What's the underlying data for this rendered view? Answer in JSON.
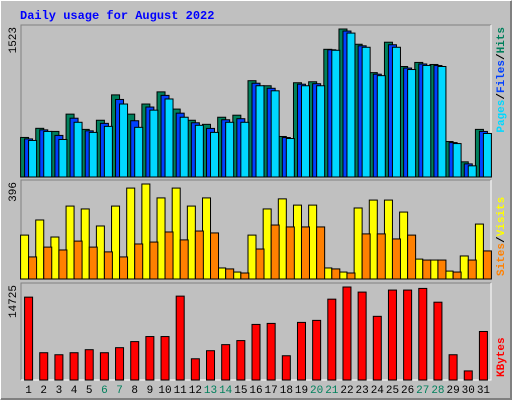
{
  "chart_data": [
    {
      "type": "bar",
      "title": "Daily usage for August 2022",
      "ylim": [
        0,
        1523
      ],
      "yticks": [
        1523
      ],
      "legend_separator": "/",
      "series": [
        {
          "name": "Hits",
          "color": "#00805C",
          "values": [
            407,
            501,
            469,
            647,
            490,
            584,
            845,
            647,
            751,
            876,
            699,
            584,
            542,
            615,
            636,
            991,
            939,
            417,
            970,
            980,
            1314,
            1523,
            1366,
            1074,
            1387,
            1137,
            1179,
            1158,
            365,
            156,
            490
          ]
        },
        {
          "name": "Files",
          "color": "#0040FF",
          "values": [
            392,
            485,
            428,
            605,
            475,
            552,
            798,
            579,
            720,
            840,
            657,
            558,
            500,
            589,
            600,
            965,
            913,
            406,
            955,
            960,
            1309,
            1502,
            1350,
            1058,
            1361,
            1121,
            1163,
            1147,
            354,
            135,
            469
          ]
        },
        {
          "name": "Pages",
          "color": "#00D8FF",
          "values": [
            376,
            469,
            386,
            563,
            459,
            521,
            751,
            511,
            688,
            803,
            615,
            532,
            459,
            563,
            563,
            939,
            887,
            396,
            939,
            939,
            1304,
            1481,
            1335,
            1043,
            1335,
            1106,
            1148,
            1137,
            344,
            115,
            448
          ]
        }
      ]
    },
    {
      "type": "bar",
      "ylim": [
        0,
        396
      ],
      "yticks": [
        396
      ],
      "legend_separator": "/",
      "series": [
        {
          "name": "Visits",
          "color": "#FFFF00",
          "values": [
            183,
            246,
            175,
            304,
            292,
            221,
            304,
            379,
            396,
            338,
            379,
            304,
            338,
            46,
            29,
            183,
            292,
            334,
            308,
            308,
            46,
            29,
            296,
            329,
            329,
            279,
            83,
            79,
            33,
            96,
            229
          ]
        },
        {
          "name": "Sites",
          "color": "#FF8000",
          "values": [
            92,
            133,
            121,
            158,
            133,
            113,
            92,
            146,
            154,
            196,
            163,
            200,
            192,
            42,
            25,
            125,
            225,
            217,
            217,
            217,
            42,
            25,
            188,
            188,
            167,
            183,
            79,
            79,
            29,
            79,
            117
          ]
        }
      ]
    },
    {
      "type": "bar",
      "ylim": [
        0,
        14725
      ],
      "yticks": [
        14725
      ],
      "categories": [
        "1",
        "2",
        "3",
        "4",
        "5",
        "6",
        "7",
        "8",
        "9",
        "10",
        "11",
        "12",
        "13",
        "14",
        "15",
        "16",
        "17",
        "18",
        "19",
        "20",
        "21",
        "22",
        "23",
        "24",
        "25",
        "26",
        "27",
        "28",
        "29",
        "30",
        "31"
      ],
      "category_colors": [
        "#000000",
        "#000000",
        "#000000",
        "#000000",
        "#000000",
        "#00805C",
        "#00805C",
        "#000000",
        "#000000",
        "#000000",
        "#000000",
        "#000000",
        "#00805C",
        "#00805C",
        "#000000",
        "#000000",
        "#000000",
        "#000000",
        "#000000",
        "#00805C",
        "#00805C",
        "#000000",
        "#000000",
        "#000000",
        "#000000",
        "#000000",
        "#00805C",
        "#00805C",
        "#000000",
        "#000000",
        "#000000"
      ],
      "series": [
        {
          "name": "KBytes",
          "color": "#FF0000",
          "values": [
            13120,
            4320,
            4000,
            4320,
            4800,
            4320,
            5120,
            6080,
            6880,
            6880,
            13280,
            3360,
            4640,
            5600,
            6240,
            8800,
            8960,
            3840,
            9120,
            9440,
            12800,
            14725,
            13920,
            10080,
            14240,
            14240,
            14500,
            12320,
            4000,
            1440,
            7680
          ]
        }
      ]
    }
  ]
}
